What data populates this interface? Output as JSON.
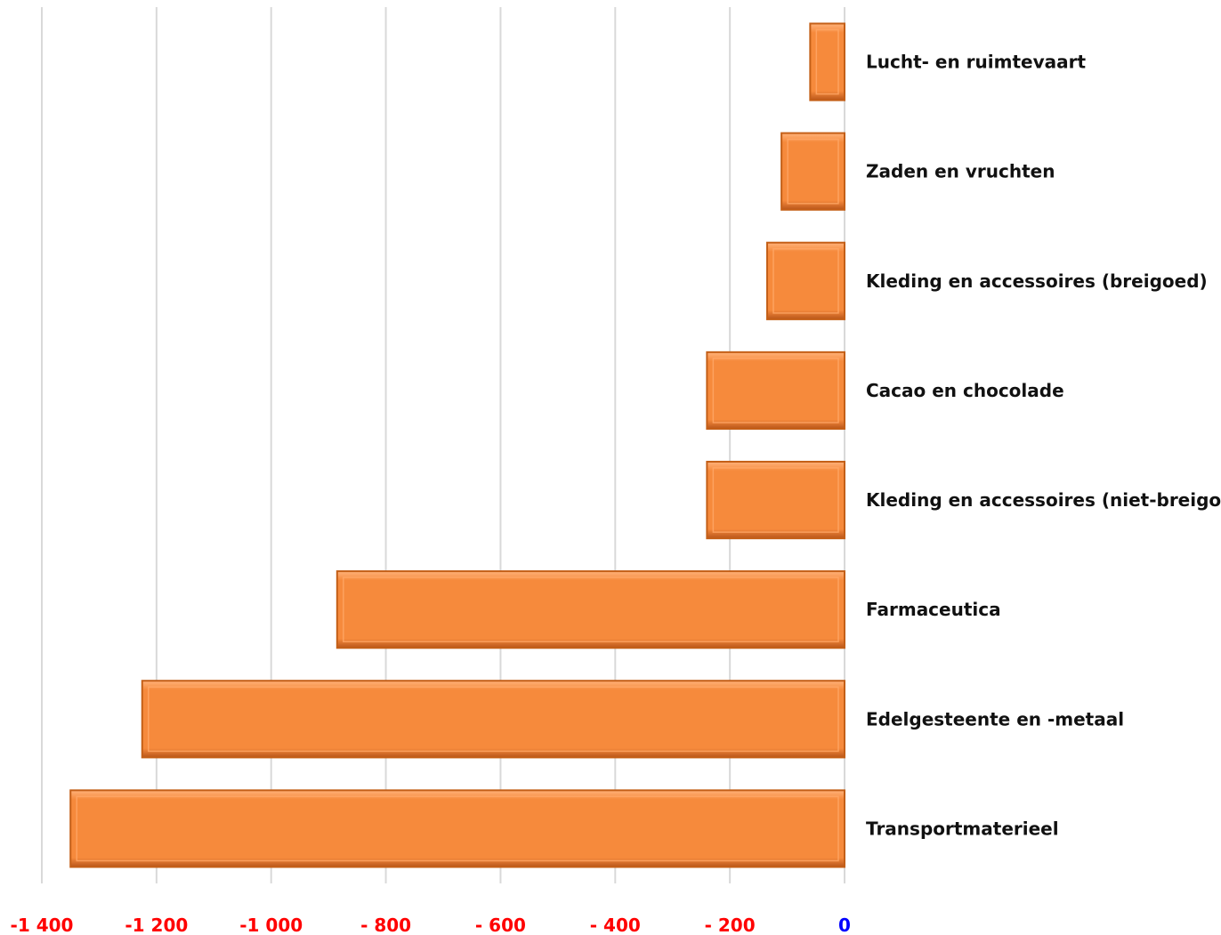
{
  "chart_data": {
    "type": "bar",
    "orientation": "horizontal",
    "categories": [
      "Lucht- en ruimtevaart",
      "Zaden en vruchten",
      "Kleding en accessoires (breigoed)",
      "Cacao en chocolade",
      "Kleding en accessoires (niet-breigoed)",
      "Farmaceutica",
      "Edelgesteente en -metaal",
      "Transportmaterieel"
    ],
    "values": [
      -60,
      -110,
      -135,
      -240,
      -240,
      -885,
      -1225,
      -1350
    ],
    "xlim": [
      -1400,
      0
    ],
    "ticks": [
      -1400,
      -1200,
      -1000,
      -800,
      -600,
      -400,
      -200,
      0
    ],
    "tick_labels": [
      "-1 400",
      "-1 200",
      "-1 000",
      "- 800",
      "- 600",
      "- 400",
      "- 200",
      "0"
    ],
    "grid": true,
    "colors": {
      "bar": "#f68a3c",
      "bar_edge": "#c45f17",
      "negative_tick": "#ff0000",
      "zero_tick": "#0000ff",
      "grid": "#d9d9d9"
    }
  }
}
